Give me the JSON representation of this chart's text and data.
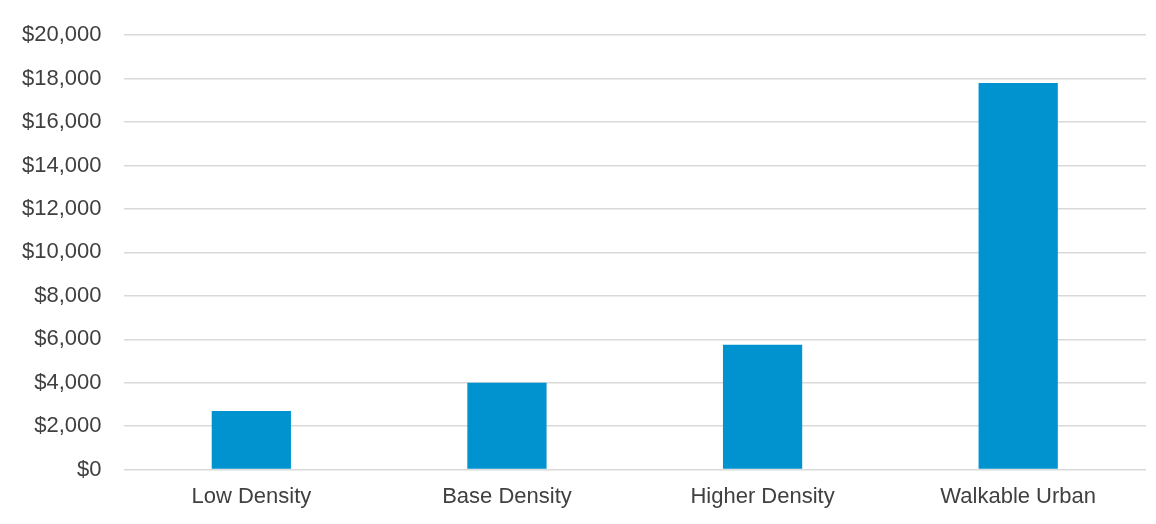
{
  "chart_data": {
    "type": "bar",
    "categories": [
      "Low Density",
      "Base Density",
      "Higher Density",
      "Walkable Urban"
    ],
    "values": [
      2700,
      4000,
      5750,
      17800
    ],
    "color": "#0093d0",
    "ylim": [
      0,
      20000
    ],
    "yticks": [
      {
        "value": 0,
        "label": "$0"
      },
      {
        "value": 2000,
        "label": "$2,000"
      },
      {
        "value": 4000,
        "label": "$4,000"
      },
      {
        "value": 6000,
        "label": "$6,000"
      },
      {
        "value": 8000,
        "label": "$8,000"
      },
      {
        "value": 10000,
        "label": "$10,000"
      },
      {
        "value": 12000,
        "label": "$12,000"
      },
      {
        "value": 14000,
        "label": "$14,000"
      },
      {
        "value": 16000,
        "label": "$16,000"
      },
      {
        "value": 18000,
        "label": "$18,000"
      },
      {
        "value": 20000,
        "label": "$20,000"
      }
    ],
    "grid": "y",
    "legend": false
  }
}
